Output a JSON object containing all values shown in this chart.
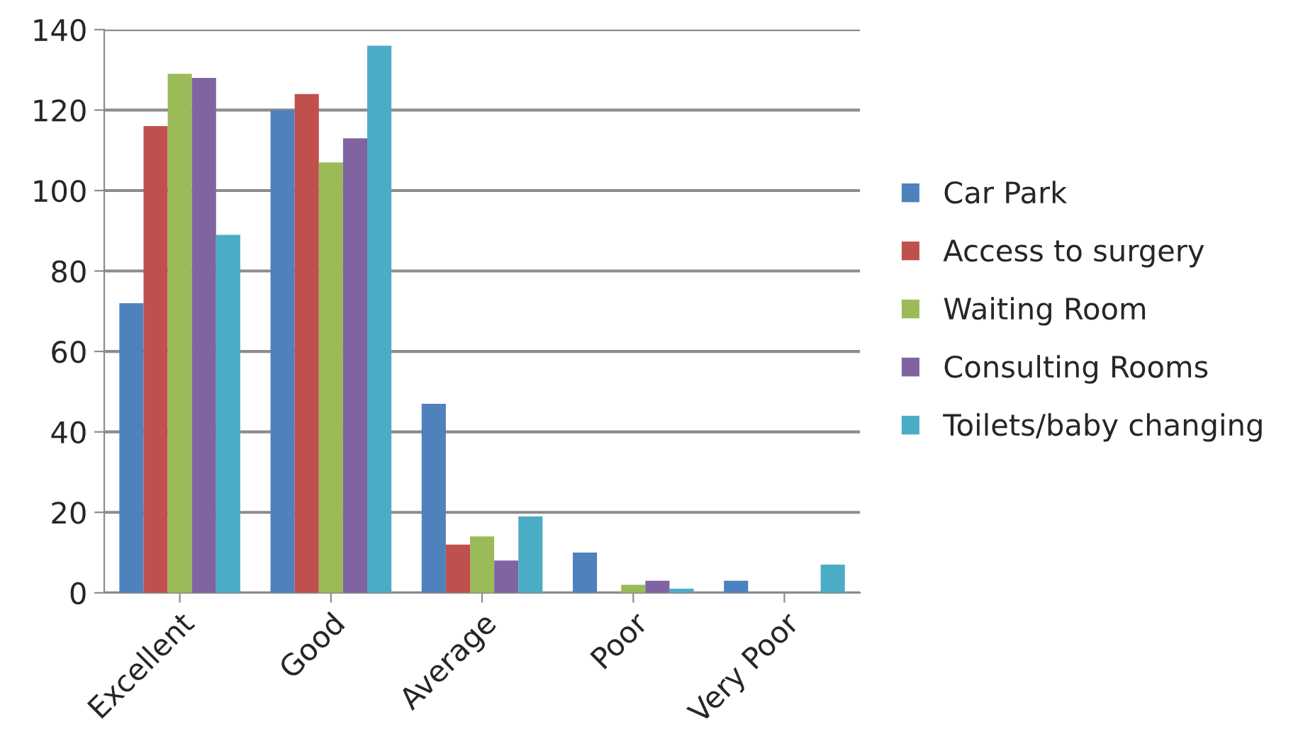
{
  "chart_data": {
    "type": "bar",
    "categories": [
      "Excellent",
      "Good",
      "Average",
      "Poor",
      "Very Poor"
    ],
    "series": [
      {
        "name": "Car Park",
        "color": "#4f81bd",
        "values": [
          72,
          120,
          47,
          10,
          3
        ]
      },
      {
        "name": "Access to surgery",
        "color": "#c0504d",
        "values": [
          116,
          124,
          12,
          null,
          null
        ]
      },
      {
        "name": "Waiting Room",
        "color": "#9bbb59",
        "values": [
          129,
          107,
          14,
          2,
          null
        ]
      },
      {
        "name": "Consulting Rooms",
        "color": "#8064a2",
        "values": [
          128,
          113,
          8,
          3,
          null
        ]
      },
      {
        "name": "Toilets/baby changing",
        "color": "#4bacc6",
        "values": [
          89,
          136,
          19,
          1,
          7
        ]
      }
    ],
    "ylim": [
      0,
      140
    ],
    "yticks": [
      0,
      20,
      40,
      60,
      80,
      100,
      120,
      140
    ],
    "grid": "y",
    "legend": "right"
  }
}
